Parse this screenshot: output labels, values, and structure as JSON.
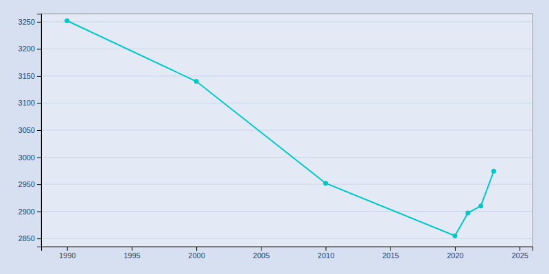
{
  "chart_data": {
    "type": "line",
    "x": [
      1990,
      2000,
      2010,
      2020,
      2021,
      2022,
      2023
    ],
    "values": [
      3252,
      3140,
      2952,
      2855,
      2897,
      2910,
      2974
    ],
    "color": "#00C8C8",
    "marker": "circle",
    "xlim": [
      1988,
      2026
    ],
    "ylim": [
      2835,
      3265
    ],
    "xticks": [
      1990,
      1995,
      2000,
      2005,
      2010,
      2015,
      2020,
      2025
    ],
    "yticks": [
      2850,
      2900,
      2950,
      3000,
      3050,
      3100,
      3150,
      3200,
      3250
    ],
    "grid": true
  }
}
